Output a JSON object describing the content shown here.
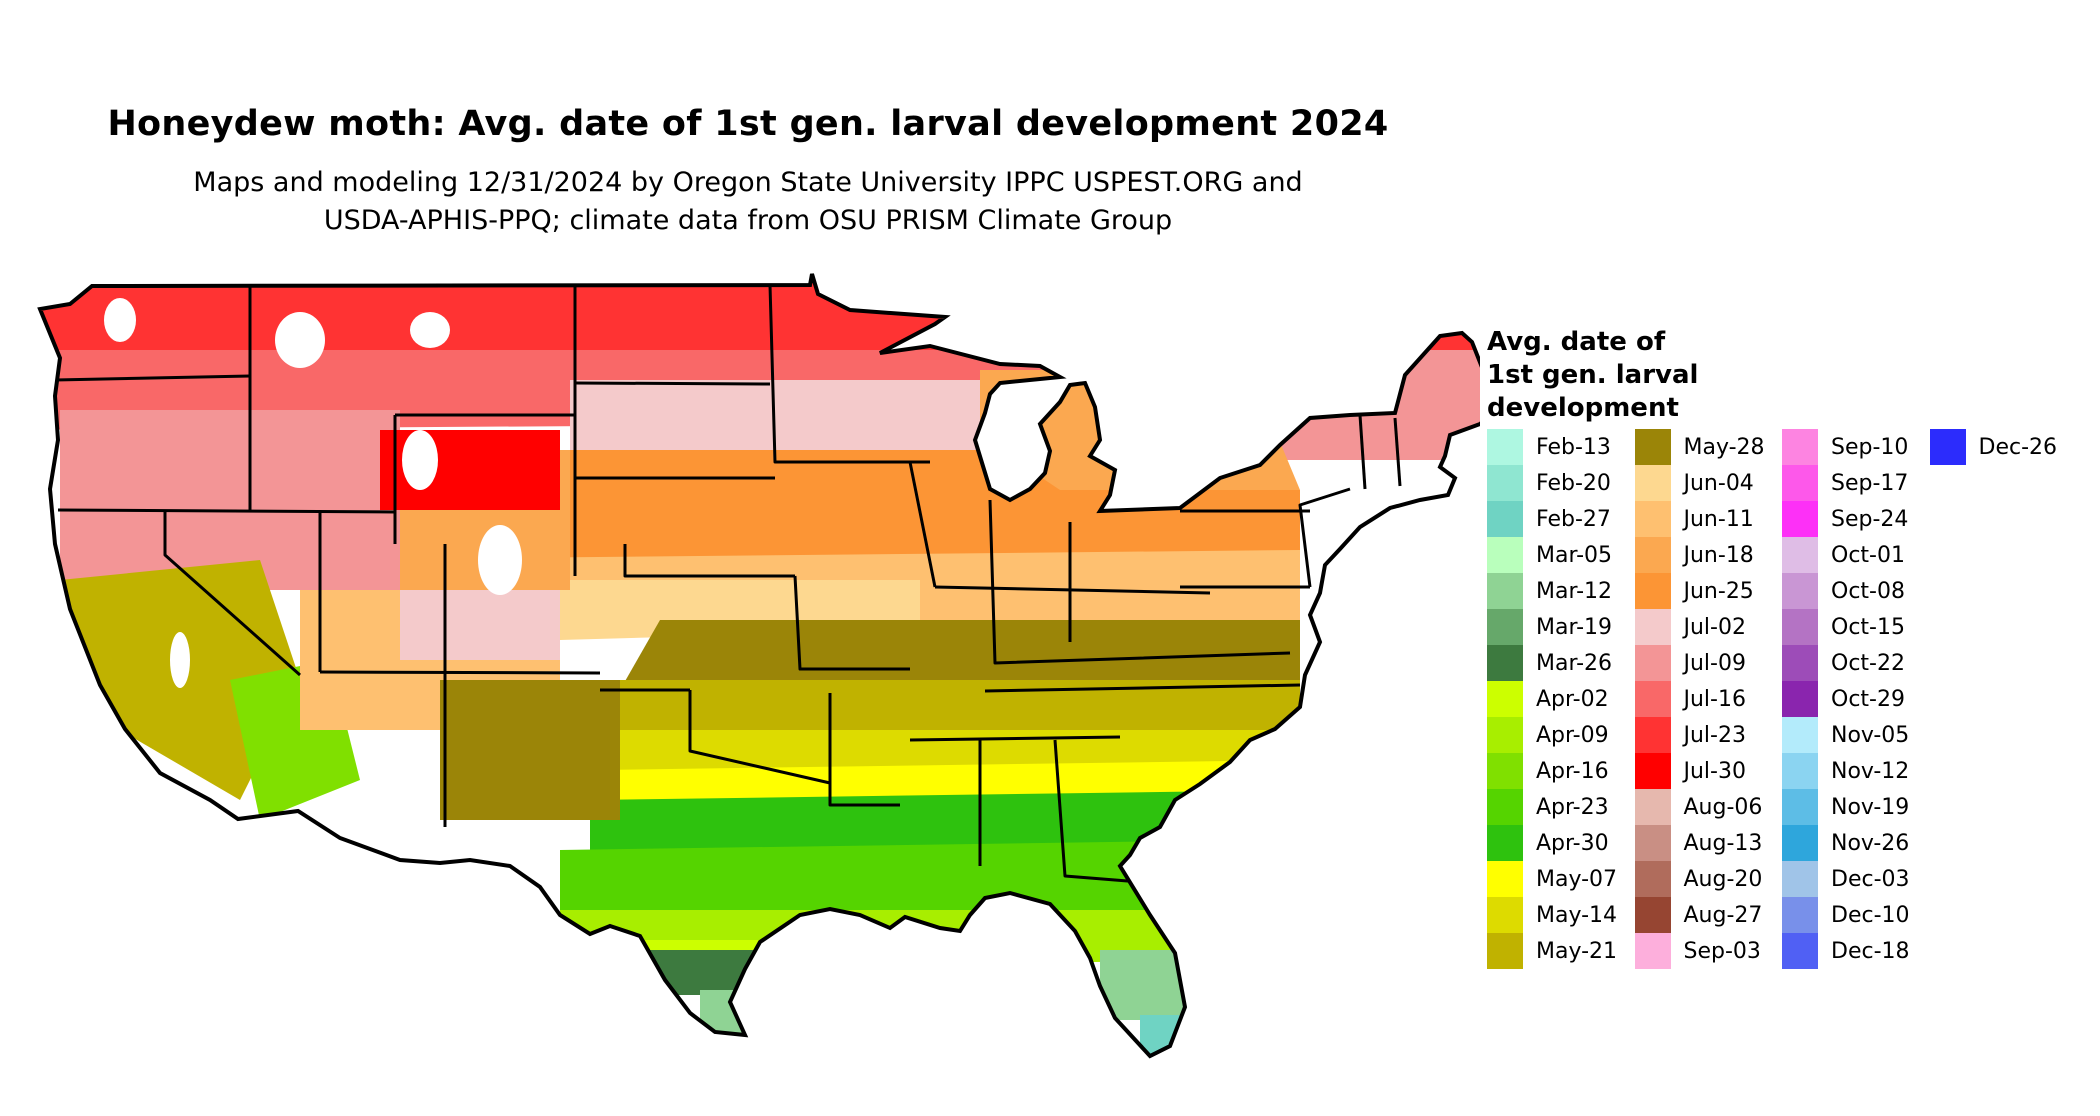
{
  "header": {
    "title": "Honeydew moth: Avg. date of 1st gen. larval development 2024",
    "subtitle_line1": "Maps and modeling 12/31/2024 by Oregon State University IPPC USPEST.ORG and",
    "subtitle_line2": "USDA-APHIS-PPQ; climate data from OSU PRISM Climate Group"
  },
  "map": {
    "region": "Contiguous United States",
    "state_borders": true,
    "general_pattern": "Earliest dates (Feb-Mar) in southern Texas and Florida; April in Gulf states; May in mid-south; June in central plains and Ohio valley; July in northern tier; Aug-Sep and unreached (white) in high elevations of the West"
  },
  "legend": {
    "title_line1": "Avg. date of",
    "title_line2": "1st gen. larval",
    "title_line3": "development",
    "items": [
      {
        "label": "Feb-13",
        "color": "#aef7e1"
      },
      {
        "label": "Feb-20",
        "color": "#8fe6d1"
      },
      {
        "label": "Feb-27",
        "color": "#6fd3c3"
      },
      {
        "label": "Mar-05",
        "color": "#b9ffbc"
      },
      {
        "label": "Mar-12",
        "color": "#8fd394"
      },
      {
        "label": "Mar-19",
        "color": "#66a86a"
      },
      {
        "label": "Mar-26",
        "color": "#3d7a3f"
      },
      {
        "label": "Apr-02",
        "color": "#ccff00"
      },
      {
        "label": "Apr-09",
        "color": "#a8ee00"
      },
      {
        "label": "Apr-16",
        "color": "#80e000"
      },
      {
        "label": "Apr-23",
        "color": "#55d400"
      },
      {
        "label": "Apr-30",
        "color": "#2ec20e"
      },
      {
        "label": "May-07",
        "color": "#ffff00"
      },
      {
        "label": "May-14",
        "color": "#dddb00"
      },
      {
        "label": "May-21",
        "color": "#c0b200"
      },
      {
        "label": "May-28",
        "color": "#9b8508"
      },
      {
        "label": "Jun-04",
        "color": "#fdd890"
      },
      {
        "label": "Jun-11",
        "color": "#fec070"
      },
      {
        "label": "Jun-18",
        "color": "#fba850"
      },
      {
        "label": "Jun-25",
        "color": "#fc9535"
      },
      {
        "label": "Jul-02",
        "color": "#f4cacb"
      },
      {
        "label": "Jul-09",
        "color": "#f39596"
      },
      {
        "label": "Jul-16",
        "color": "#f96868"
      },
      {
        "label": "Jul-23",
        "color": "#ff3333"
      },
      {
        "label": "Jul-30",
        "color": "#ff0000"
      },
      {
        "label": "Aug-06",
        "color": "#e6b8ae"
      },
      {
        "label": "Aug-13",
        "color": "#c98f84"
      },
      {
        "label": "Aug-20",
        "color": "#b06c5c"
      },
      {
        "label": "Aug-27",
        "color": "#964532"
      },
      {
        "label": "Sep-03",
        "color": "#fdafdc"
      },
      {
        "label": "Sep-10",
        "color": "#fd84e1"
      },
      {
        "label": "Sep-17",
        "color": "#fd58ea"
      },
      {
        "label": "Sep-24",
        "color": "#fd30f7"
      },
      {
        "label": "Oct-01",
        "color": "#dfbde6"
      },
      {
        "label": "Oct-08",
        "color": "#c996d4"
      },
      {
        "label": "Oct-15",
        "color": "#b473c4"
      },
      {
        "label": "Oct-22",
        "color": "#9d4cb8"
      },
      {
        "label": "Oct-29",
        "color": "#8a25ae"
      },
      {
        "label": "Nov-05",
        "color": "#b3ebfb"
      },
      {
        "label": "Nov-12",
        "color": "#8bd4f1"
      },
      {
        "label": "Nov-19",
        "color": "#5dbde6"
      },
      {
        "label": "Nov-26",
        "color": "#2ea6dc"
      },
      {
        "label": "Dec-03",
        "color": "#a0c4e8"
      },
      {
        "label": "Dec-10",
        "color": "#7890ea"
      },
      {
        "label": "Dec-18",
        "color": "#5060f4"
      },
      {
        "label": "Dec-26",
        "color": "#2c2cfc"
      }
    ]
  }
}
